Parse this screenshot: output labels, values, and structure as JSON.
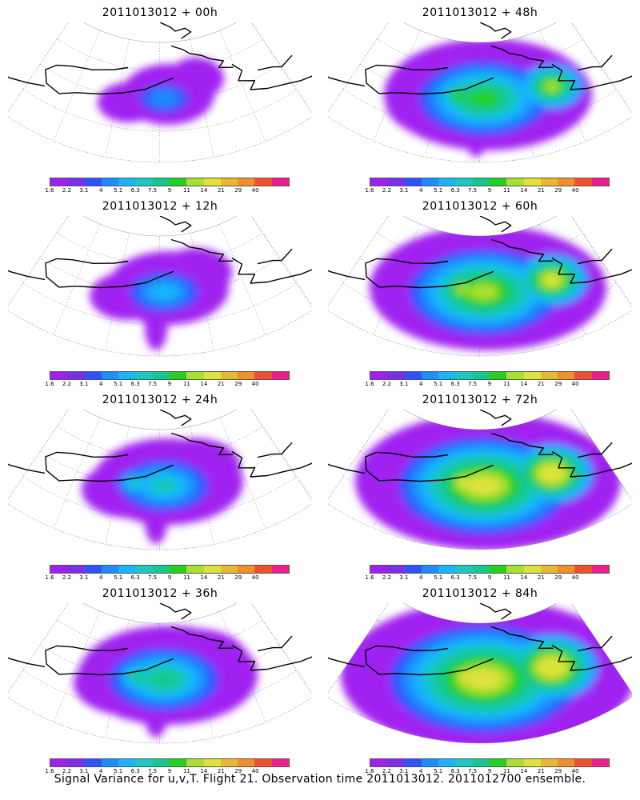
{
  "panels": [
    {
      "title": "2011013012 + 00h",
      "lead": "00h"
    },
    {
      "title": "2011013012 + 48h",
      "lead": "48h"
    },
    {
      "title": "2011013012 + 12h",
      "lead": "12h"
    },
    {
      "title": "2011013012 + 60h",
      "lead": "60h"
    },
    {
      "title": "2011013012 + 24h",
      "lead": "24h"
    },
    {
      "title": "2011013012 + 72h",
      "lead": "72h"
    },
    {
      "title": "2011013012 + 36h",
      "lead": "36h"
    },
    {
      "title": "2011013012 + 84h",
      "lead": "84h"
    }
  ],
  "colorbar": {
    "labels": [
      "1.6",
      "2.2",
      "3.1",
      "4",
      "5.1",
      "6.3",
      "7.5",
      "9",
      "11",
      "14",
      "21",
      "29",
      "40"
    ],
    "colors": [
      "#a020f0",
      "#7a30e8",
      "#2e52ff",
      "#1c8cff",
      "#19b4ff",
      "#19c9c0",
      "#14c88c",
      "#22d020",
      "#a8e032",
      "#e0e23c",
      "#e8b830",
      "#f09028",
      "#f05030",
      "#f01c8c"
    ]
  },
  "intensity_by_lead": {
    "00h": 1,
    "12h": 2,
    "24h": 3,
    "36h": 4,
    "48h": 5,
    "60h": 6,
    "72h": 7,
    "84h": 8
  },
  "caption": "Signal Variance for u,v,T. Flight 21. Observation time 2011013012. 2011012700 ensemble."
}
